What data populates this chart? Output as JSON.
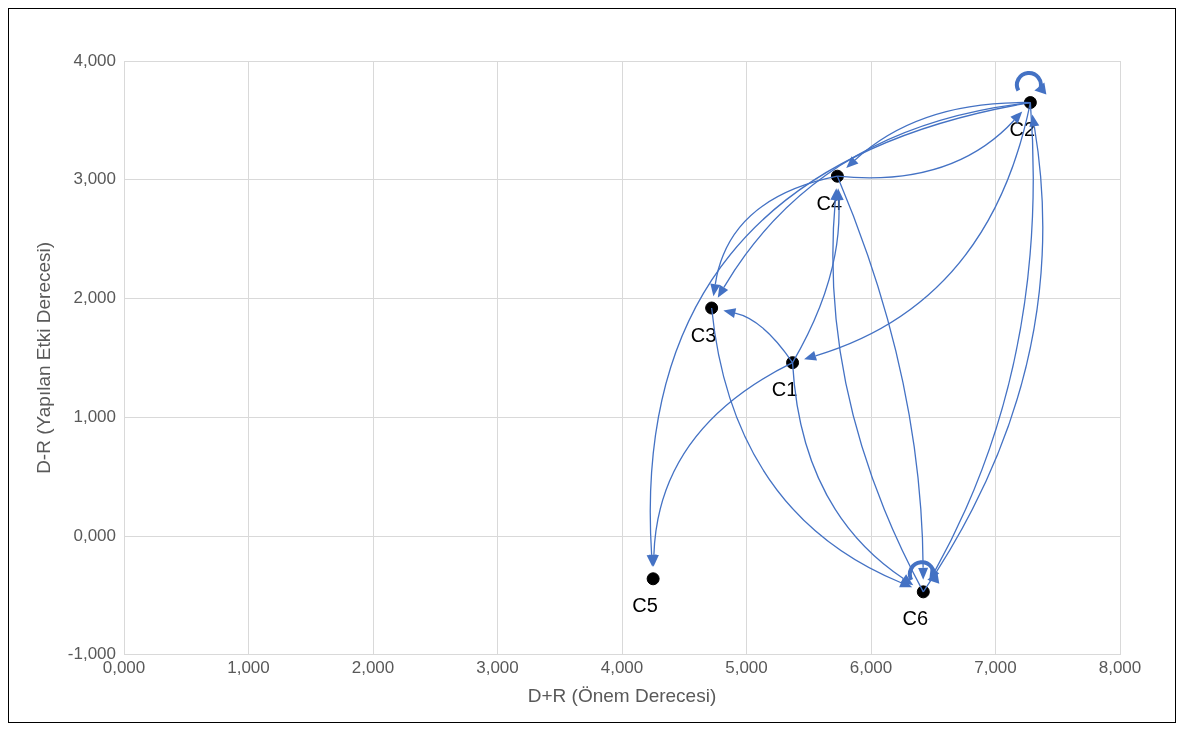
{
  "chart_data": {
    "type": "scatter",
    "xlabel": "D+R (Önem Derecesi)",
    "ylabel": "D-R (Yapılan Etki Derecesi)",
    "x": [
      5.37,
      7.28,
      4.72,
      5.73,
      4.25,
      6.42
    ],
    "values": [
      1.46,
      3.65,
      1.92,
      3.03,
      -0.36,
      -0.47
    ],
    "color": "#000000",
    "marker": "circle",
    "grid": true,
    "xlim": [
      0,
      8
    ],
    "ylim": [
      -1,
      4
    ],
    "xticks": [
      {
        "value": 0,
        "label": "0,000"
      },
      {
        "value": 1,
        "label": "1,000"
      },
      {
        "value": 2,
        "label": "2,000"
      },
      {
        "value": 3,
        "label": "3,000"
      },
      {
        "value": 4,
        "label": "4,000"
      },
      {
        "value": 5,
        "label": "5,000"
      },
      {
        "value": 6,
        "label": "6,000"
      },
      {
        "value": 7,
        "label": "7,000"
      },
      {
        "value": 8,
        "label": "8,000"
      }
    ],
    "yticks": [
      {
        "value": -1,
        "label": "-1,000"
      },
      {
        "value": 0,
        "label": "0,000"
      },
      {
        "value": 1,
        "label": "1,000"
      },
      {
        "value": 2,
        "label": "2,000"
      },
      {
        "value": 3,
        "label": "3,000"
      },
      {
        "value": 4,
        "label": "4,000"
      }
    ],
    "annotations": [
      {
        "text": "C1",
        "x": 5.37,
        "y": 1.46
      },
      {
        "text": "C2",
        "x": 7.28,
        "y": 3.65
      },
      {
        "text": "C3",
        "x": 4.72,
        "y": 1.92
      },
      {
        "text": "C4",
        "x": 5.73,
        "y": 3.03
      },
      {
        "text": "C5",
        "x": 4.25,
        "y": -0.36
      },
      {
        "text": "C6",
        "x": 6.42,
        "y": -0.47
      }
    ]
  }
}
